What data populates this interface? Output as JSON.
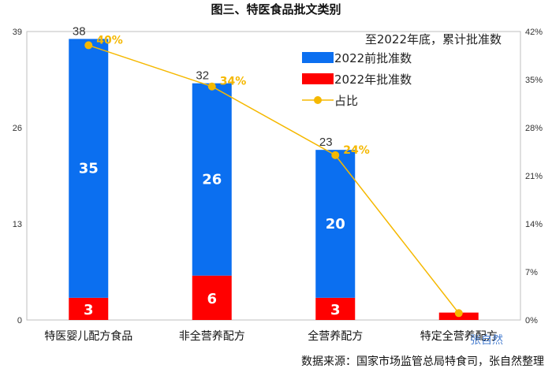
{
  "chart_data": {
    "type": "bar",
    "title": "图三、特医食品批文类别",
    "categories": [
      "特医婴儿配方食品",
      "非全营养配方",
      "全营养配方",
      "特定全营养配方"
    ],
    "series": [
      {
        "name": "2022年批准数",
        "values": [
          3,
          6,
          3,
          1
        ],
        "color": "#ff0000"
      },
      {
        "name": "2022前批准数",
        "values": [
          35,
          26,
          20,
          0
        ],
        "color": "#0b6ff0"
      }
    ],
    "totals": [
      38,
      32,
      23,
      null
    ],
    "inbar_labels": {
      "2022前批准数": [
        "35",
        "26",
        "20",
        ""
      ],
      "2022年批准数": [
        "3",
        "6",
        "3",
        ""
      ]
    },
    "line": {
      "name": "占比",
      "values": [
        0.4,
        0.34,
        0.24,
        0.01
      ],
      "labels": [
        "40%",
        "34%",
        "24%",
        ""
      ],
      "color": "#f5b800"
    },
    "y_left": {
      "min": 0,
      "max": 39,
      "ticks": [
        "0",
        "13",
        "26",
        "39"
      ]
    },
    "y_right": {
      "min": 0,
      "max": 0.42,
      "ticks": [
        "0%",
        "7%",
        "14%",
        "21%",
        "28%",
        "35%",
        "42%"
      ]
    },
    "legend_title": "至2022年底，累计批准数",
    "legend_position": "top-right"
  },
  "source_text": "数据来源：国家市场监管总局特食司，张自然整理",
  "watermark": "张自然"
}
